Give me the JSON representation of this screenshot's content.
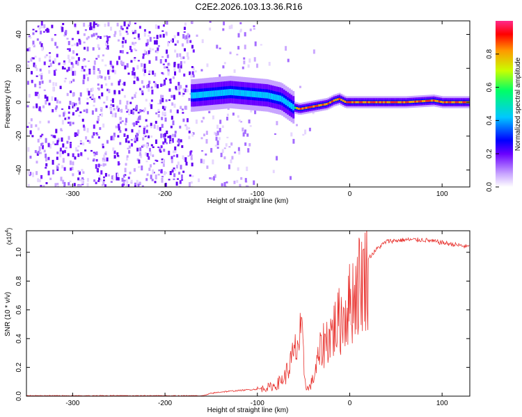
{
  "title": "C2E2.2026.103.13.36.R16",
  "chart_data": [
    {
      "type": "heatmap",
      "xlabel": "Height of straight line (km)",
      "ylabel": "Frequency (Hz)",
      "xlim": [
        -350,
        130
      ],
      "ylim": [
        -50,
        48
      ],
      "xticks": [
        -300,
        -200,
        -100,
        0,
        100
      ],
      "yticks": [
        -40,
        -20,
        0,
        20,
        40
      ],
      "grid": false,
      "colorbar": {
        "label": "Normalized spectral amplitude",
        "ticks": [
          0.0,
          0.2,
          0.4,
          0.6,
          0.8
        ],
        "range": [
          0,
          1
        ],
        "colormap": [
          "#ffffff",
          "#c8a4ff",
          "#6a00ff",
          "#0000ff",
          "#00c8ff",
          "#00ff66",
          "#c8ff00",
          "#ff9900",
          "#ff0000",
          "#ff2a8a"
        ]
      },
      "ridge": {
        "x": [
          -170,
          -150,
          -130,
          -110,
          -90,
          -75,
          -62,
          -55,
          -45,
          -35,
          -25,
          -18,
          -12,
          -5,
          0,
          30,
          60,
          90,
          100,
          130
        ],
        "y": [
          4,
          5,
          6,
          5,
          4,
          2,
          -3,
          -4,
          -3,
          -2,
          -1,
          1,
          2,
          0,
          0,
          0,
          0,
          1,
          0,
          0
        ]
      },
      "noise_region_x": [
        -350,
        -100
      ]
    },
    {
      "type": "line",
      "xlabel": "Height of straight line (km)",
      "ylabel": "SNR (10 * v/v)",
      "yscale_note": "(x10",
      "yscale_exp": "4",
      "xlim": [
        -350,
        130
      ],
      "ylim": [
        0.0,
        1.15
      ],
      "xticks": [
        -300,
        -200,
        -100,
        0,
        100
      ],
      "yticks": [
        0.0,
        0.2,
        0.4,
        0.6,
        0.8,
        1.0
      ],
      "grid": false,
      "series": [
        {
          "color": "#e8322e",
          "x": [
            -350,
            -300,
            -250,
            -200,
            -160,
            -150,
            -140,
            -120,
            -100,
            -80,
            -70,
            -60,
            -55,
            -52,
            -48,
            -45,
            -40,
            -30,
            -20,
            -10,
            0,
            10,
            20,
            30,
            40,
            60,
            80,
            100,
            120,
            130
          ],
          "y": [
            0.0,
            0.0,
            0.0,
            0.0,
            0.0,
            0.02,
            0.03,
            0.04,
            0.05,
            0.08,
            0.15,
            0.32,
            0.42,
            0.45,
            0.1,
            0.05,
            0.12,
            0.38,
            0.48,
            0.58,
            0.7,
            0.86,
            0.96,
            1.03,
            1.08,
            1.09,
            1.09,
            1.07,
            1.05,
            1.04
          ]
        }
      ]
    }
  ]
}
